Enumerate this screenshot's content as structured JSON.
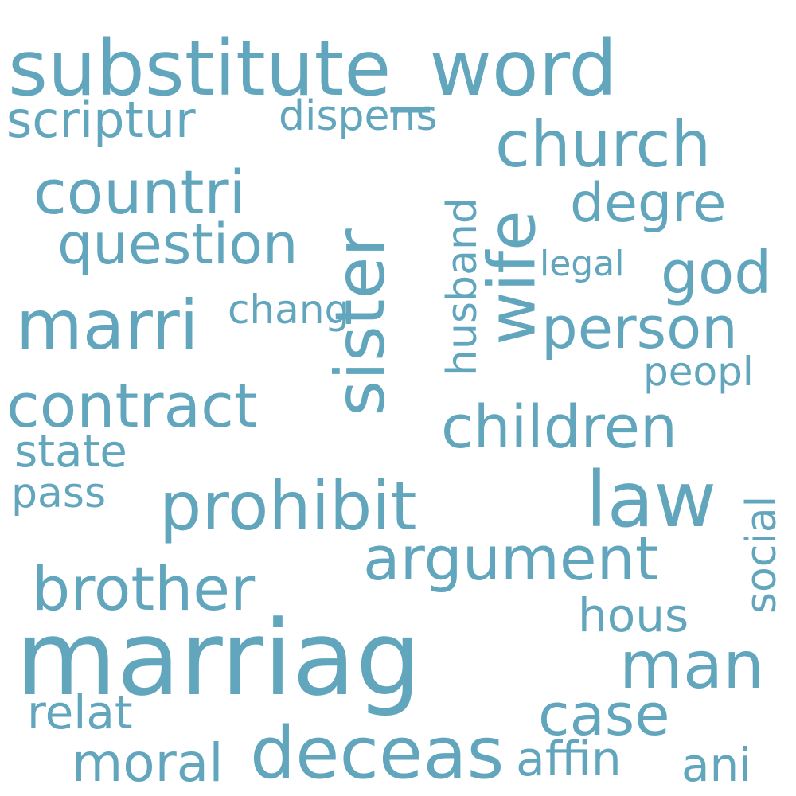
{
  "cloud": {
    "color": "#62a6bd",
    "background": "#ffffff",
    "words": [
      {
        "text": "substitute_word"
      },
      {
        "text": "scriptur"
      },
      {
        "text": "dispens"
      },
      {
        "text": "church"
      },
      {
        "text": "countri"
      },
      {
        "text": "degre"
      },
      {
        "text": "question"
      },
      {
        "text": "sister"
      },
      {
        "text": "husband"
      },
      {
        "text": "wife"
      },
      {
        "text": "legal"
      },
      {
        "text": "god"
      },
      {
        "text": "marri"
      },
      {
        "text": "chang"
      },
      {
        "text": "person"
      },
      {
        "text": "peopl"
      },
      {
        "text": "contract"
      },
      {
        "text": "children"
      },
      {
        "text": "state"
      },
      {
        "text": "pass"
      },
      {
        "text": "prohibit"
      },
      {
        "text": "law"
      },
      {
        "text": "social"
      },
      {
        "text": "argument"
      },
      {
        "text": "brother"
      },
      {
        "text": "hous"
      },
      {
        "text": "marriag"
      },
      {
        "text": "man"
      },
      {
        "text": "relat"
      },
      {
        "text": "case"
      },
      {
        "text": "moral"
      },
      {
        "text": "deceas"
      },
      {
        "text": "affin"
      },
      {
        "text": "ani"
      }
    ]
  }
}
